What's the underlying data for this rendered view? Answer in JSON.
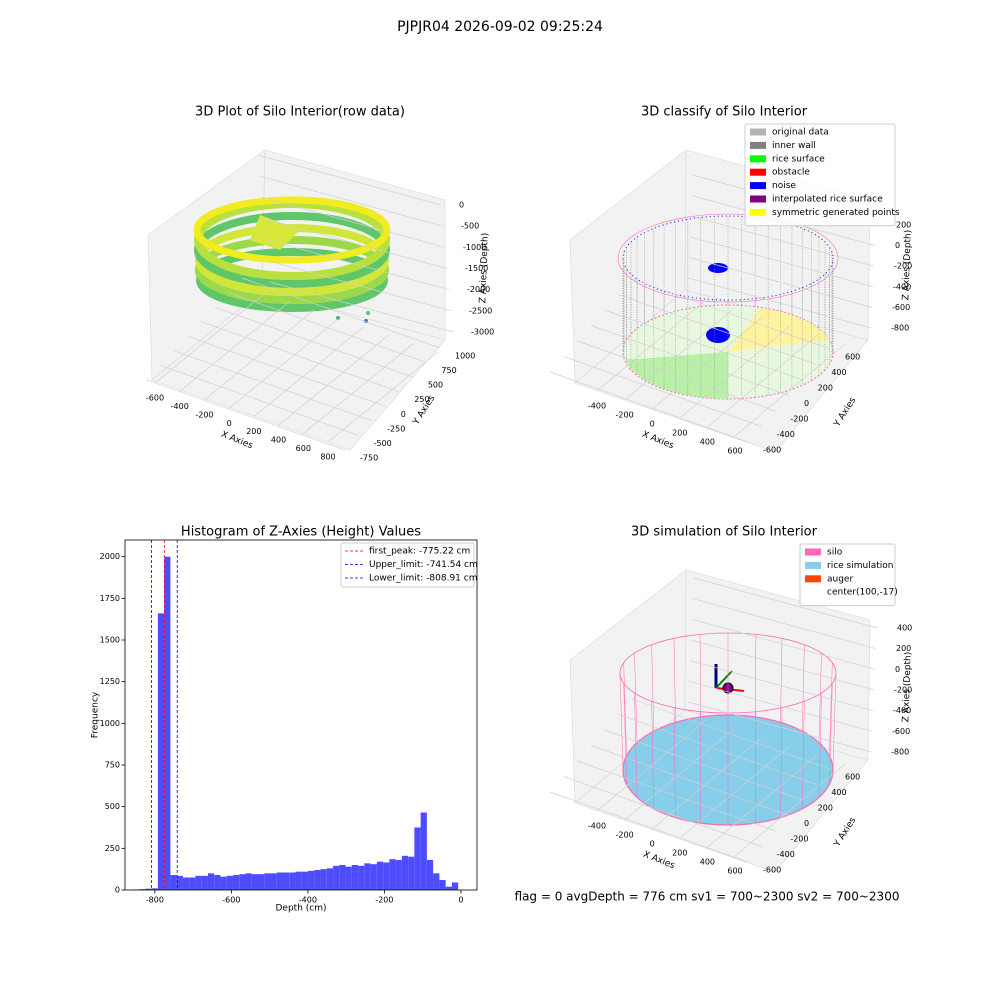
{
  "title": "PJPJR04 2026-09-02 09:25:24",
  "footer": "flag = 0     avgDepth = 776 cm  sv1 = 700~2300  sv2 = 700~2300",
  "chart_data": [
    {
      "type": "scatter3d",
      "title": "3D Plot of Silo Interior(row data)",
      "xlabel": "X Axies",
      "ylabel": "Y Axies",
      "zlabel": "Z Axies (Depth)",
      "xlim": [
        -600,
        800
      ],
      "xticks": [
        -600,
        -400,
        -200,
        0,
        200,
        400,
        600,
        800
      ],
      "ylim": [
        -750,
        1000
      ],
      "yticks": [
        -750,
        -500,
        -250,
        0,
        250,
        500,
        750,
        1000
      ],
      "zlim": [
        -3000,
        0
      ],
      "zticks": [
        -3000,
        -2500,
        -2000,
        -1500,
        -1000,
        -500,
        0
      ]
    },
    {
      "type": "scatter3d",
      "title": "3D classify of Silo Interior",
      "xlabel": "X Axies",
      "ylabel": "Y Axies",
      "zlabel": "Z Axies (Depth)",
      "xlim": [
        -400,
        600
      ],
      "xticks": [
        -400,
        -200,
        0,
        200,
        400,
        600
      ],
      "ylim": [
        -600,
        600
      ],
      "yticks": [
        -600,
        -400,
        -200,
        0,
        200,
        400,
        600
      ],
      "zlim": [
        -800,
        200
      ],
      "zticks": [
        -800,
        -600,
        -400,
        -200,
        0,
        200
      ],
      "legend": "upper right",
      "series": [
        {
          "name": "original data",
          "color": "#b3b3b3"
        },
        {
          "name": "inner wall",
          "color": "#808080"
        },
        {
          "name": "rice surface",
          "color": "#00ff00"
        },
        {
          "name": "obstacle",
          "color": "#ff0000"
        },
        {
          "name": "noise",
          "color": "#0000ff"
        },
        {
          "name": "interpolated rice surface",
          "color": "#800080"
        },
        {
          "name": "symmetric generated points",
          "color": "#ffff00"
        }
      ]
    },
    {
      "type": "histogram",
      "title": "Histogram of Z-Axies (Height) Values",
      "xlabel": "Depth (cm)",
      "ylabel": "Frequency",
      "color": "#4d4dff",
      "bins": [
        -857.4,
        -841.05,
        -824.7,
        -808.35,
        -792,
        -775.65,
        -759.3,
        -742.95,
        -726.6,
        -710.25,
        -693.9,
        -677.55,
        -661.2,
        -644.85,
        -628.5,
        -612.15,
        -595.8,
        -579.45,
        -563.1,
        -546.75,
        -530.4,
        -514.05,
        -497.7,
        -481.35,
        -465,
        -448.65,
        -432.3,
        -415.95,
        -399.6,
        -383.25,
        -366.9,
        -350.55,
        -334.2,
        -317.85,
        -301.5,
        -285.15,
        -268.8,
        -252.45,
        -236.1,
        -219.75,
        -203.4,
        -187.05,
        -170.7,
        -154.35,
        -138,
        -121.65,
        -105.3,
        -88.95,
        -72.6,
        -56.25,
        -39.9,
        -23.55,
        -7.2
      ],
      "values": [
        3,
        5,
        8,
        10,
        1660,
        2000,
        90,
        85,
        75,
        75,
        85,
        85,
        100,
        90,
        80,
        85,
        90,
        95,
        100,
        95,
        95,
        100,
        100,
        105,
        105,
        105,
        110,
        110,
        115,
        120,
        125,
        130,
        145,
        150,
        140,
        150,
        145,
        160,
        155,
        170,
        165,
        185,
        180,
        205,
        200,
        375,
        465,
        180,
        100,
        60,
        20,
        45
      ],
      "xlim": [
        -878,
        42
      ],
      "xticks": [
        -800,
        -600,
        -400,
        -200,
        0
      ],
      "ylim": [
        0,
        2100
      ],
      "yticks": [
        0,
        250,
        500,
        750,
        1000,
        1250,
        1500,
        1750,
        2000
      ],
      "legend": "upper right",
      "lines": [
        {
          "name": "first_peak: -775.22 cm",
          "value": -775.22,
          "color": "#ff0000"
        },
        {
          "name": "Upper_limit: -741.54 cm",
          "value": -741.54,
          "color": "#0000ff"
        },
        {
          "name": "Lower_limit: -808.91 cm",
          "value": -808.91,
          "color": "#0000ff"
        }
      ]
    },
    {
      "type": "scatter3d",
      "title": "3D simulation of Silo Interior",
      "xlabel": "X Axies",
      "ylabel": "Y Axies",
      "zlabel": "Z Axies (Depth)",
      "xlim": [
        -400,
        600
      ],
      "xticks": [
        -400,
        -200,
        0,
        200,
        400,
        600
      ],
      "ylim": [
        -600,
        600
      ],
      "yticks": [
        -600,
        -400,
        -200,
        0,
        200,
        400,
        600
      ],
      "zlim": [
        -800,
        400
      ],
      "zticks": [
        -800,
        -600,
        -400,
        -200,
        0,
        200,
        400
      ],
      "legend": "upper right",
      "series": [
        {
          "name": "silo",
          "color": "#ff69b4"
        },
        {
          "name": "rice simulation",
          "color": "#87ceeb"
        },
        {
          "name": "auger",
          "color": "#ff4500"
        },
        {
          "name": "center(100,-17)"
        }
      ]
    }
  ]
}
